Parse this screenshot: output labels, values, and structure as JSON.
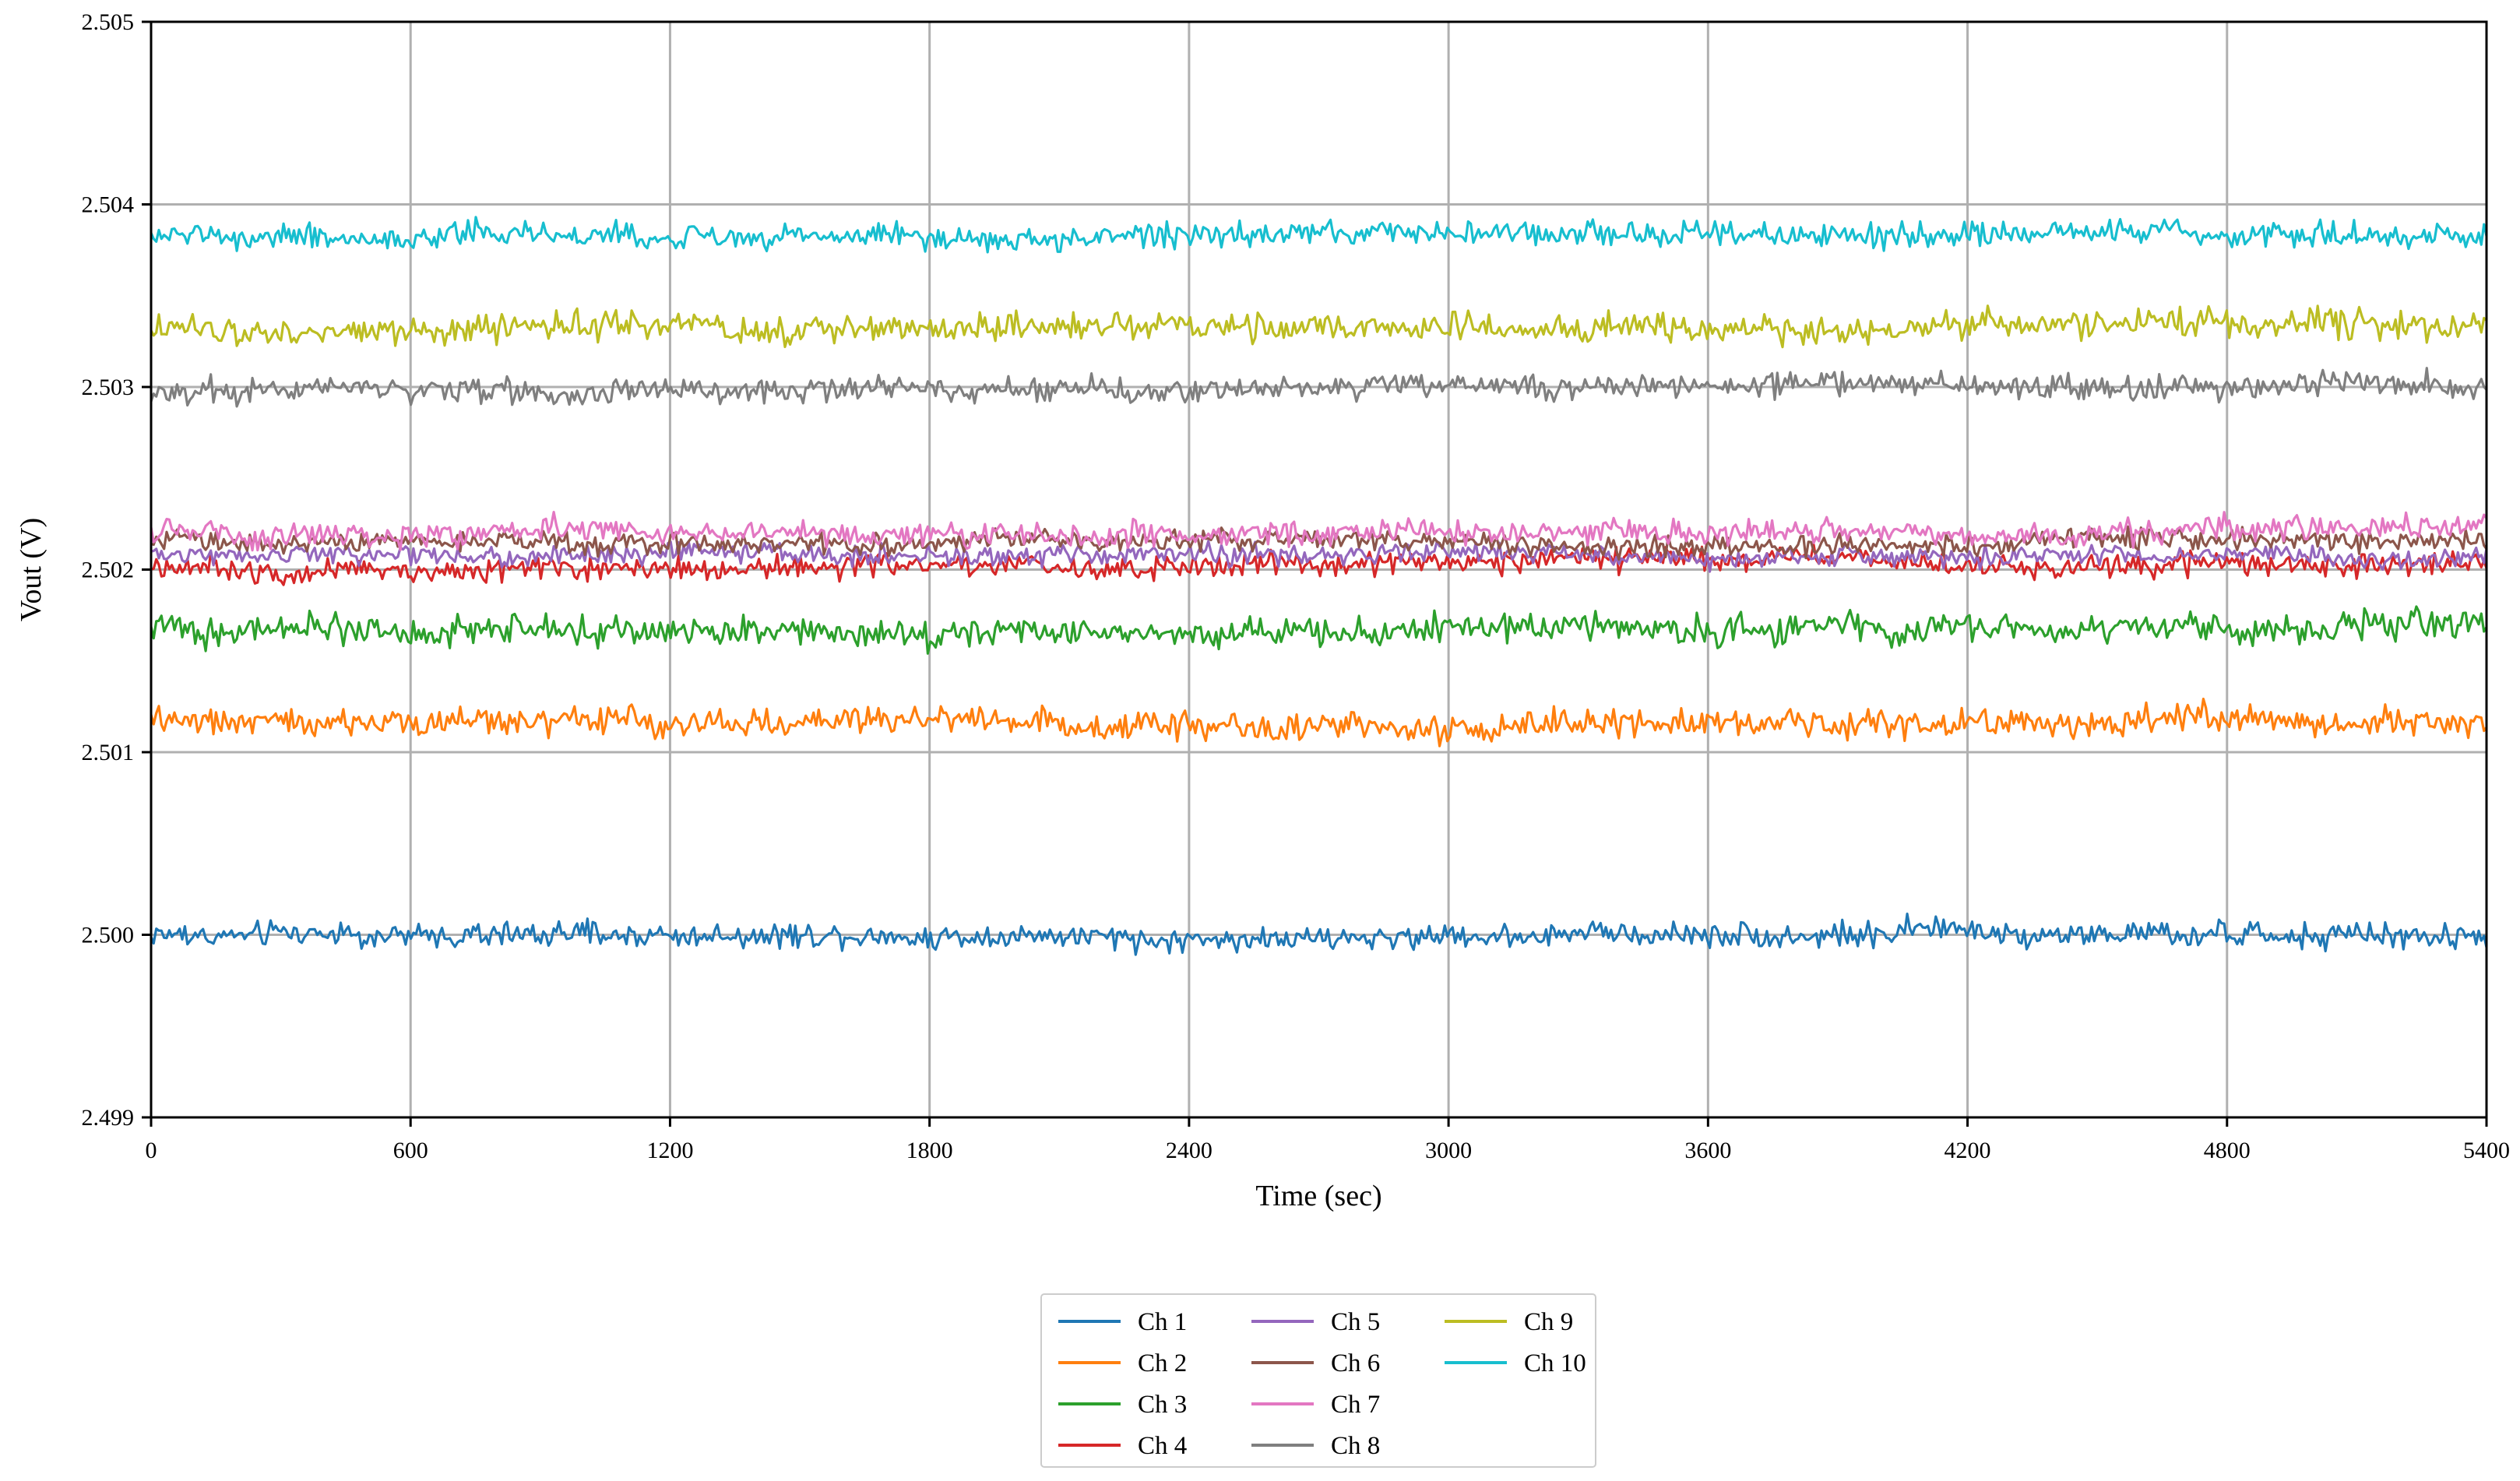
{
  "chart_data": {
    "type": "line",
    "title": "",
    "xlabel": "Time (sec)",
    "ylabel": "Vout (V)",
    "xlim": [
      0,
      5400
    ],
    "ylim": [
      2.499,
      2.505
    ],
    "xticks": [
      0,
      600,
      1200,
      1800,
      2400,
      3000,
      3600,
      4200,
      4800,
      5400
    ],
    "xtick_labels": [
      "0",
      "600",
      "1200",
      "1800",
      "2400",
      "3000",
      "3600",
      "4200",
      "4800",
      "5400"
    ],
    "yticks": [
      2.499,
      2.5,
      2.501,
      2.502,
      2.503,
      2.504,
      2.505
    ],
    "ytick_labels": [
      "2.499",
      "2.500",
      "2.501",
      "2.502",
      "2.503",
      "2.504",
      "2.505"
    ],
    "grid": true,
    "legend": {
      "placement": "bottom-center, below plot",
      "columns": 3,
      "entries": [
        "Ch 1",
        "Ch 2",
        "Ch 3",
        "Ch 4",
        "Ch 5",
        "Ch 6",
        "Ch 7",
        "Ch 8",
        "Ch 9",
        "Ch 10"
      ]
    },
    "series": [
      {
        "name": "Ch 1",
        "color": "#1f77b4",
        "mean": 2.5,
        "noise_pp": 0.00012
      },
      {
        "name": "Ch 2",
        "color": "#ff7f0e",
        "mean": 2.50117,
        "noise_pp": 0.00014
      },
      {
        "name": "Ch 3",
        "color": "#2ca02c",
        "mean": 2.50168,
        "noise_pp": 0.00014
      },
      {
        "name": "Ch 4",
        "color": "#d62728",
        "mean": 2.50202,
        "noise_pp": 0.00012
      },
      {
        "name": "Ch 5",
        "color": "#9467bd",
        "mean": 2.50208,
        "noise_pp": 0.0001
      },
      {
        "name": "Ch 6",
        "color": "#8c564b",
        "mean": 2.50215,
        "noise_pp": 0.0001
      },
      {
        "name": "Ch 7",
        "color": "#e377c2",
        "mean": 2.5022,
        "noise_pp": 0.00012
      },
      {
        "name": "Ch 8",
        "color": "#7f7f7f",
        "mean": 2.50298,
        "noise_pp": 0.00012
      },
      {
        "name": "Ch 9",
        "color": "#bcbd22",
        "mean": 2.50333,
        "noise_pp": 0.00014
      },
      {
        "name": "Ch 10",
        "color": "#17becf",
        "mean": 2.50382,
        "noise_pp": 0.00012
      }
    ],
    "samples_per_series": 900
  }
}
